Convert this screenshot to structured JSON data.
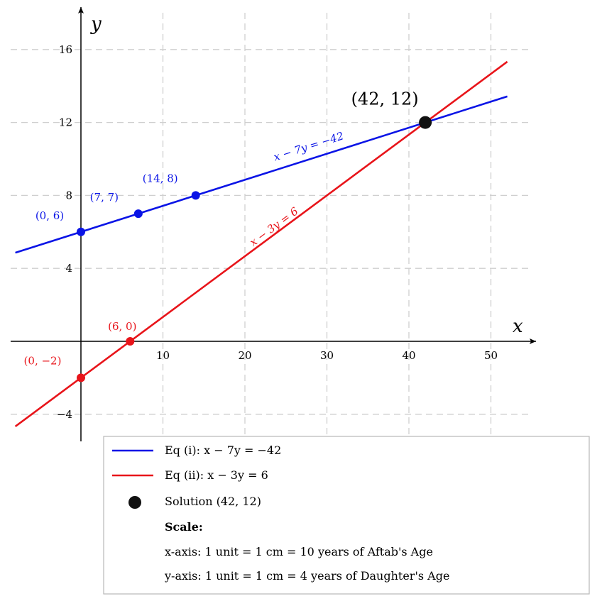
{
  "chart_data": {
    "type": "line",
    "xlabel": "x",
    "ylabel": "y",
    "xlim": [
      -8,
      55
    ],
    "ylim": [
      -5.5,
      18
    ],
    "grid": true,
    "x_ticks": [
      10,
      20,
      30,
      40,
      50
    ],
    "y_ticks": [
      -4,
      4,
      8,
      12,
      16
    ],
    "x_tick_labels": [
      "10",
      "20",
      "30",
      "40",
      "50"
    ],
    "y_tick_labels": [
      "−4",
      "4",
      "8",
      "12",
      "16"
    ],
    "series": [
      {
        "name": "Eq (i): x − 7y = −42",
        "color": "#0a14e6",
        "x_range": [
          -8,
          52
        ],
        "slope": 0.142857,
        "intercept": 6,
        "line_label": "x − 7y = −42",
        "points": [
          {
            "x": 0,
            "y": 6,
            "label": "(0, 6)"
          },
          {
            "x": 7,
            "y": 7,
            "label": "(7, 7)"
          },
          {
            "x": 14,
            "y": 8,
            "label": "(14, 8)"
          }
        ]
      },
      {
        "name": "Eq (ii): x − 3y = 6",
        "color": "#e8141a",
        "x_range": [
          -8,
          52
        ],
        "slope": 0.333333,
        "intercept": -2,
        "line_label": "x − 3y = 6",
        "points": [
          {
            "x": 0,
            "y": -2,
            "label": "(0, −2)"
          },
          {
            "x": 6,
            "y": 0,
            "label": "(6, 0)"
          }
        ]
      }
    ],
    "solution": {
      "x": 42,
      "y": 12,
      "label": "(42, 12)",
      "color": "#111111"
    },
    "legend": {
      "position": "bottom-right",
      "entries": [
        {
          "label": "Eq (i): x − 7y = −42",
          "color": "#0a14e6",
          "kind": "line"
        },
        {
          "label": "Eq (ii): x − 3y = 6",
          "color": "#e8141a",
          "kind": "line"
        },
        {
          "label": "Solution (42, 12)",
          "color": "#111111",
          "kind": "dot"
        }
      ],
      "scale_title": "Scale:",
      "scale_lines": [
        "x-axis: 1 unit = 1 cm = 10 years of Aftab's Age",
        "y-axis: 1 unit = 1 cm = 4 years of Daughter's Age"
      ]
    }
  }
}
